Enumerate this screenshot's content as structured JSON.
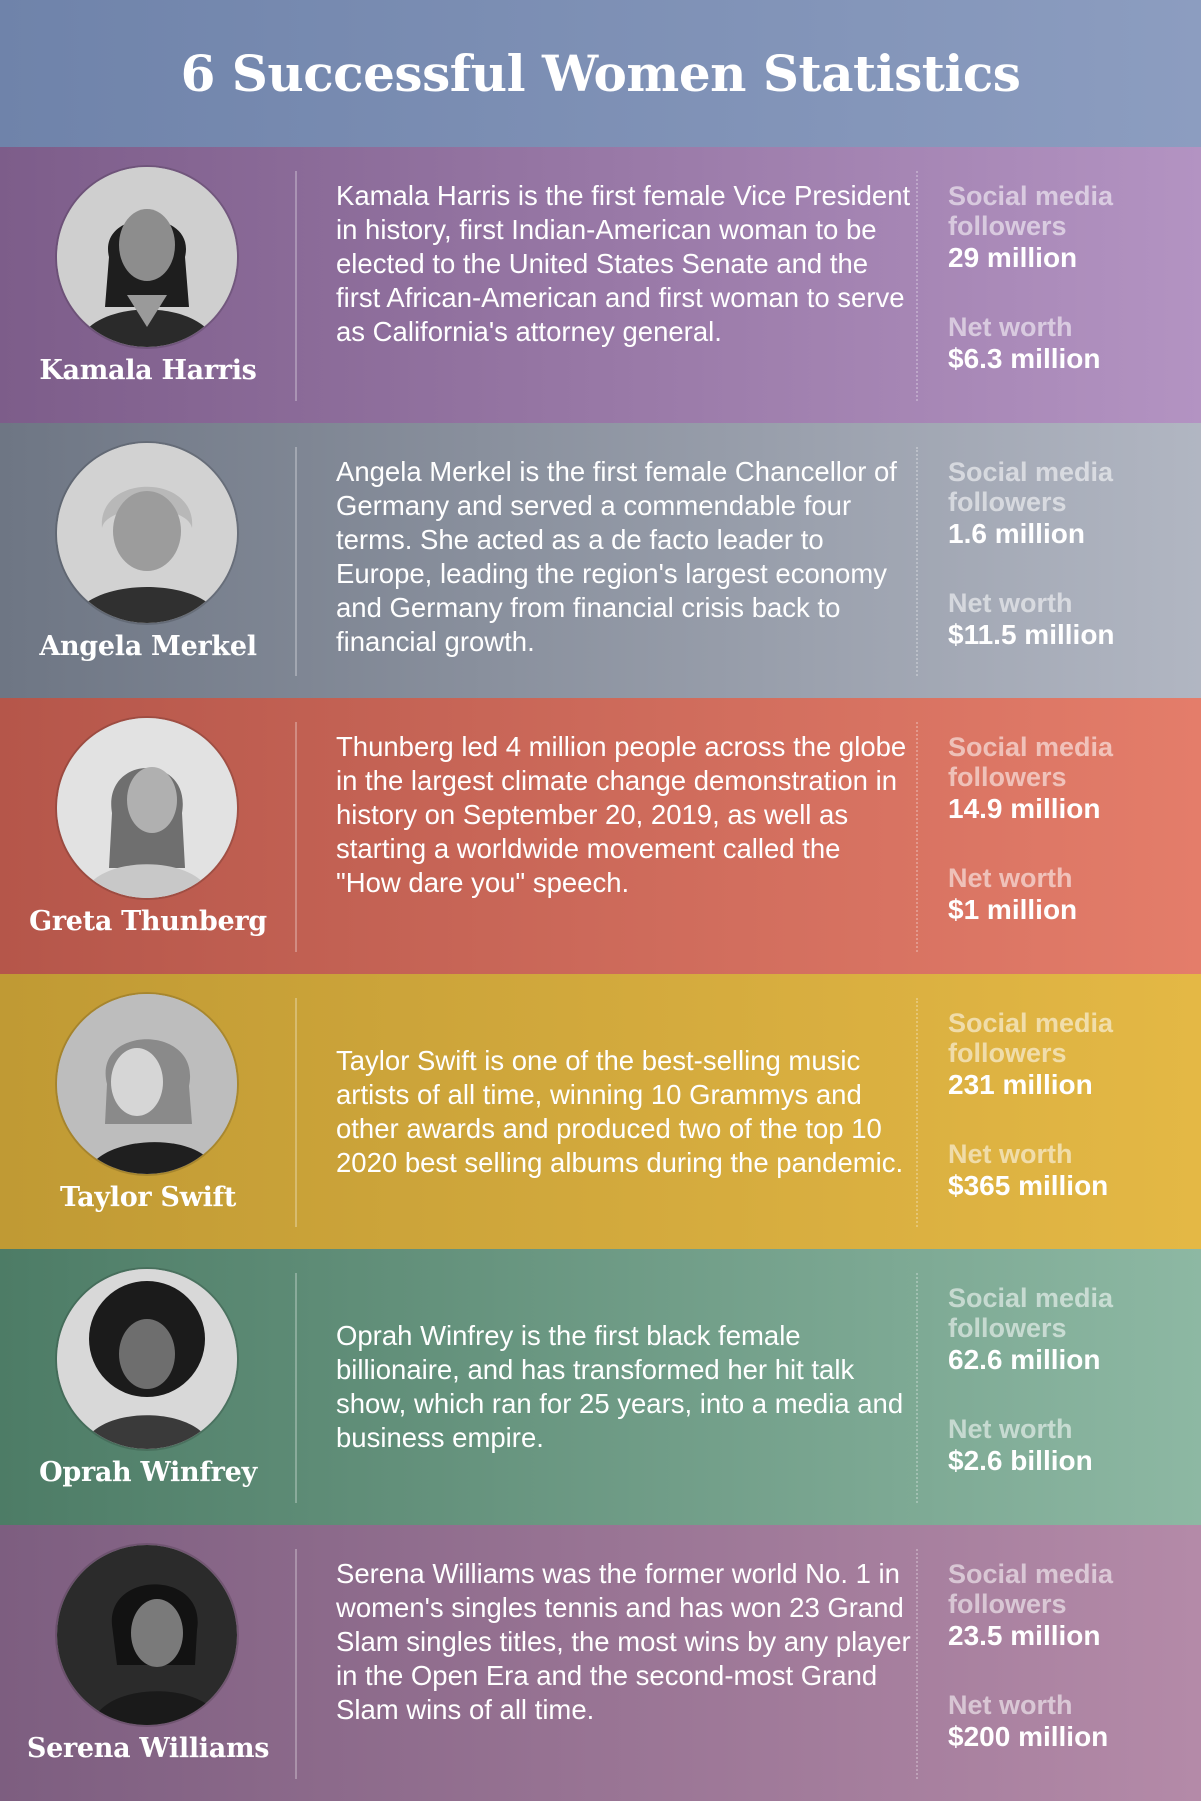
{
  "header": {
    "title": "6 Successful Women Statistics"
  },
  "rows": [
    {
      "name": "Kamala Harris",
      "description": "Kamala Harris is the first female Vice President in history, first Indian-American woman to be elected to the United States Senate and the first African-American and first woman to serve as California's attorney general.",
      "followers_label": "Social media followers",
      "followers": "29 million",
      "networth_label": "Net worth",
      "networth": "$6.3 million",
      "color_start": "#7d5d8a",
      "color_end": "#b393c2"
    },
    {
      "name": "Angela Merkel",
      "description": "Angela Merkel is the first female Chancellor of Germany and served a commendable four terms. She acted as a de facto leader to Europe, leading the region's largest economy and Germany from financial crisis back to financial growth.",
      "followers_label": "Social media followers",
      "followers": "1.6 million",
      "networth_label": "Net worth",
      "networth": "$11.5 million",
      "color_start": "#6e7684",
      "color_end": "#b1b6c2"
    },
    {
      "name": "Greta Thunberg",
      "description": "Thunberg led 4 million people across the globe in the largest climate change demonstration in history on September 20, 2019, as well as starting a worldwide movement called the \"How dare you\" speech.",
      "followers_label": "Social media followers",
      "followers": "14.9 million",
      "networth_label": "Net worth",
      "networth": "$1 million",
      "color_start": "#b5564a",
      "color_end": "#e47d6a"
    },
    {
      "name": "Taylor Swift",
      "description": "Taylor Swift is one of the best-selling music artists of all time, winning 10 Grammys and other awards and produced two of the top 10 2020 best selling albums during the pandemic.",
      "followers_label": "Social media followers",
      "followers": "231 million",
      "networth_label": "Net worth",
      "networth": "$365 million",
      "color_start": "#c09a34",
      "color_end": "#e4b845"
    },
    {
      "name": "Oprah Winfrey",
      "description": "Oprah Winfrey is the first black female billionaire, and has transformed her hit talk show, which ran for 25 years, into a media and business empire.",
      "followers_label": "Social media followers",
      "followers": "62.6 million",
      "networth_label": "Net worth",
      "networth": "$2.6 billion",
      "color_start": "#4d7c66",
      "color_end": "#8db8a3"
    },
    {
      "name": "Serena Williams",
      "description": "Serena Williams was the former world No. 1 in women's singles tennis and has won 23 Grand Slam singles titles, the most wins by any player in the Open Era and the second-most Grand Slam wins of all time.",
      "followers_label": "Social media followers",
      "followers": "23.5 million",
      "networth_label": "Net worth",
      "networth": "$200 million",
      "color_start": "#7d5e80",
      "color_end": "#b48aa8"
    }
  ]
}
